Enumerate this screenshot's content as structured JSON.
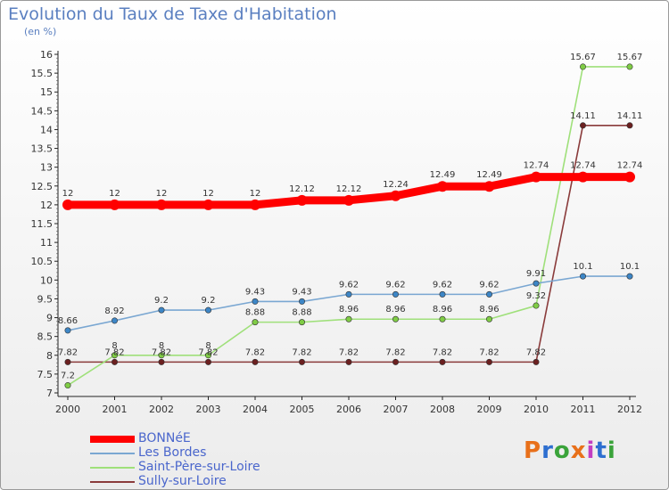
{
  "header": {
    "title": "Evolution du Taux de Taxe d'Habitation",
    "subtitle": "(en %)"
  },
  "brand": {
    "logo_text": "Proxiti",
    "logo_colors": [
      "#e8701a",
      "#2e6fd0",
      "#3aa33a",
      "#e8701a",
      "#c23ec2",
      "#2e6fd0",
      "#3aa33a"
    ]
  },
  "chart_data": {
    "type": "line",
    "title": "Evolution du Taux de Taxe d'Habitation",
    "ylabel": "(en %)",
    "xlabel": "",
    "ylim": [
      7,
      16
    ],
    "yticks": [
      "7",
      "7.5",
      "8",
      "8.5",
      "9",
      "9.5",
      "10",
      "10.5",
      "11",
      "11.5",
      "12",
      "12.5",
      "13",
      "13.5",
      "14",
      "14.5",
      "15",
      "15.5",
      "16"
    ],
    "categories": [
      "2000",
      "2001",
      "2002",
      "2003",
      "2004",
      "2005",
      "2006",
      "2007",
      "2008",
      "2009",
      "2010",
      "2011",
      "2012"
    ],
    "grid": false,
    "legend_position": "bottom-left",
    "series": [
      {
        "name": "BONNéE",
        "color": "#ff0000",
        "marker_color": "#ff0000",
        "thick": true,
        "values": [
          12,
          12,
          12,
          12,
          12,
          12.12,
          12.12,
          12.24,
          12.49,
          12.49,
          12.74,
          12.74,
          12.74
        ],
        "labels": [
          "12",
          "12",
          "12",
          "12",
          "12",
          "12.12",
          "12.12",
          "12.24",
          "12.49",
          "12.49",
          "12.74",
          "12.74",
          "12.74"
        ]
      },
      {
        "name": "Les Bordes",
        "color": "#7aa7d2",
        "marker_color": "#3d86c6",
        "thick": false,
        "values": [
          8.66,
          8.92,
          9.2,
          9.2,
          9.43,
          9.43,
          9.62,
          9.62,
          9.62,
          9.62,
          9.91,
          10.1,
          10.1
        ],
        "labels": [
          "8.66",
          "8.92",
          "9.2",
          "9.2",
          "9.43",
          "9.43",
          "9.62",
          "9.62",
          "9.62",
          "9.62",
          "9.91",
          "10.1",
          "10.1"
        ]
      },
      {
        "name": "Saint-Père-sur-Loire",
        "color": "#9fe07a",
        "marker_color": "#7fcc45",
        "thick": false,
        "values": [
          7.2,
          8,
          8,
          8,
          8.88,
          8.88,
          8.96,
          8.96,
          8.96,
          8.96,
          9.32,
          15.67,
          15.67
        ],
        "labels": [
          "7.2",
          "8",
          "8",
          "8",
          "8.88",
          "8.88",
          "8.96",
          "8.96",
          "8.96",
          "8.96",
          "9.32",
          "15.67",
          "15.67"
        ]
      },
      {
        "name": "Sully-sur-Loire",
        "color": "#8a3b3b",
        "marker_color": "#6b2020",
        "thick": false,
        "values": [
          7.82,
          7.82,
          7.82,
          7.82,
          7.82,
          7.82,
          7.82,
          7.82,
          7.82,
          7.82,
          7.82,
          14.11,
          14.11
        ],
        "labels": [
          "7.82",
          "7.82",
          "7.82",
          "7.82",
          "7.82",
          "7.82",
          "7.82",
          "7.82",
          "7.82",
          "7.82",
          "7.82",
          "14.11",
          "14.11"
        ]
      }
    ]
  }
}
